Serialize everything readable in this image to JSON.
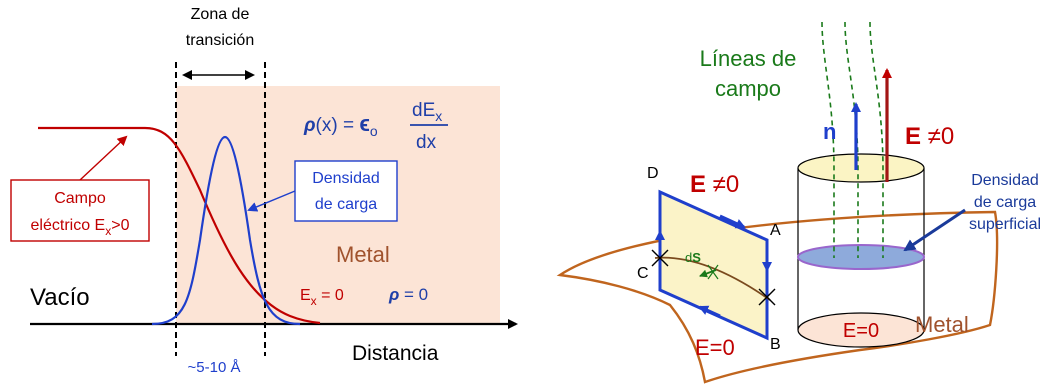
{
  "left": {
    "zone_title_line1": "Zona de",
    "zone_title_line2": "transición",
    "formula_rho": "ρ",
    "formula_mid": "(x) = ",
    "formula_eps": "ϵ",
    "formula_eps_sub": "o",
    "formula_num": "dE",
    "formula_num_sub": "x",
    "formula_den": "dx",
    "field_label_line1": "Campo",
    "field_label_line2": "eléctrico E",
    "field_label_sub": "x",
    "field_label_tail": ">0",
    "charge_label_line1": "Densidad",
    "charge_label_line2": "de carga",
    "metal_label": "Metal",
    "vacuum_label": "Vacío",
    "ex_zero_main": "E",
    "ex_zero_sub": "x",
    "ex_zero_tail": " = 0",
    "rho_zero_symbol": "ρ",
    "rho_zero_tail": " = 0",
    "thickness_label": "~5-10 Å",
    "x_axis_label": "Distancia"
  },
  "right": {
    "field_lines_line1": "Líneas de",
    "field_lines_line2": "campo",
    "n_label": "n",
    "e_nonzero_top_main": "E",
    "e_nonzero_top_tail": " ≠0",
    "surface_charge_line1": "Densidad",
    "surface_charge_line2": "de carga",
    "surface_charge_line3": "superficial",
    "e_nonzero_loop_main": "E",
    "e_nonzero_loop_tail": " ≠0",
    "corner_d": "D",
    "corner_a": "A",
    "corner_c": "C",
    "corner_b": "B",
    "ds_label_prefix": "d",
    "ds_label_bold": "S",
    "e_zero_cylinder": "E=0",
    "e_zero_loop": "E=0",
    "metal_label": "Metal"
  },
  "colors": {
    "metal_fill": "#fce4d6",
    "field_curve": "#c00000",
    "charge_curve": "#1f3fcc",
    "formula": "#1f3fa8",
    "field_lines": "#1a7a1a",
    "surface_edge": "#c0651e",
    "cylinder_top": "#fbf4c4",
    "charge_disk": "#8eaadb",
    "loop_fill": "#fbf3c8"
  }
}
